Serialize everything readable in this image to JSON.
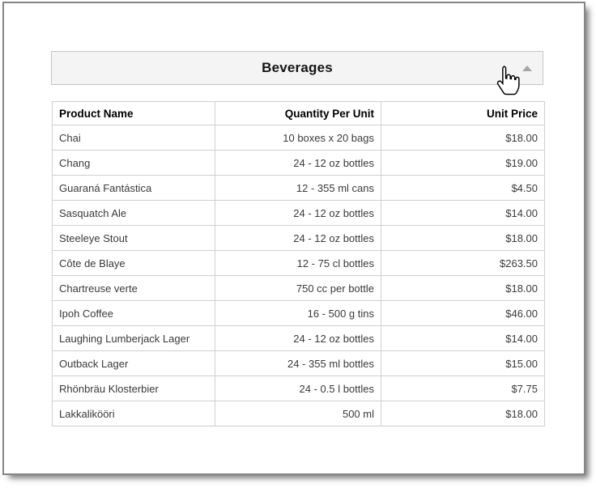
{
  "panel": {
    "title": "Beverages",
    "state": "expanded",
    "collapse_icon": "triangle-up-icon"
  },
  "table": {
    "columns": [
      {
        "label": "Product Name",
        "align": "left"
      },
      {
        "label": "Quantity Per Unit",
        "align": "right"
      },
      {
        "label": "Unit Price",
        "align": "right"
      }
    ],
    "rows": [
      {
        "product": "Chai",
        "quantity": "10 boxes x 20 bags",
        "price": "$18.00"
      },
      {
        "product": "Chang",
        "quantity": "24 - 12 oz bottles",
        "price": "$19.00"
      },
      {
        "product": "Guaraná Fantástica",
        "quantity": "12 - 355 ml cans",
        "price": "$4.50"
      },
      {
        "product": "Sasquatch Ale",
        "quantity": "24 - 12 oz bottles",
        "price": "$14.00"
      },
      {
        "product": "Steeleye Stout",
        "quantity": "24 - 12 oz bottles",
        "price": "$18.00"
      },
      {
        "product": "Côte de Blaye",
        "quantity": "12 - 75 cl bottles",
        "price": "$263.50"
      },
      {
        "product": "Chartreuse verte",
        "quantity": "750 cc per bottle",
        "price": "$18.00"
      },
      {
        "product": "Ipoh Coffee",
        "quantity": "16 - 500 g tins",
        "price": "$46.00"
      },
      {
        "product": "Laughing Lumberjack Lager",
        "quantity": "24 - 12 oz bottles",
        "price": "$14.00"
      },
      {
        "product": "Outback Lager",
        "quantity": "24 - 355 ml bottles",
        "price": "$15.00"
      },
      {
        "product": "Rhönbräu Klosterbier",
        "quantity": "24 - 0.5 l bottles",
        "price": "$7.75"
      },
      {
        "product": "Lakkalikööri",
        "quantity": "500 ml",
        "price": "$18.00"
      }
    ]
  },
  "cursor": {
    "type": "hand-pointer"
  },
  "colors": {
    "panel_bg": "#f4f4f4",
    "panel_border": "#c5c5c5",
    "grid_border": "#cfcfcf",
    "header_text": "#000000",
    "cell_text": "#3a3a3a",
    "collapse_arrow": "#a6a6a6",
    "window_border": "#858585"
  }
}
